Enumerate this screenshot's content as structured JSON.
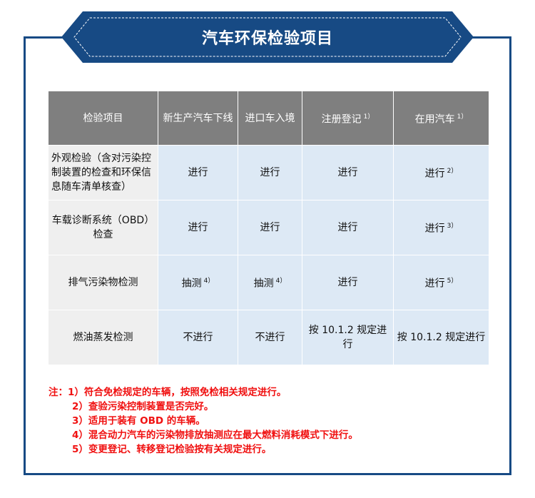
{
  "title": "汽车环保检验项目",
  "table": {
    "headers": [
      {
        "text": "检验项目",
        "sup": ""
      },
      {
        "text": "新生产汽车下线",
        "sup": ""
      },
      {
        "text": "进口车入境",
        "sup": ""
      },
      {
        "text": "注册登记",
        "sup": "1）"
      },
      {
        "text": "在用汽车",
        "sup": "1）"
      }
    ],
    "rows": [
      [
        {
          "text": "外观检验（含对污染控制装置的检查和环保信息随车清单核查）",
          "sup": ""
        },
        {
          "text": "进行",
          "sup": ""
        },
        {
          "text": "进行",
          "sup": ""
        },
        {
          "text": "进行",
          "sup": ""
        },
        {
          "text": "进行",
          "sup": "2）"
        }
      ],
      [
        {
          "text": "车载诊断系统（OBD）检查",
          "sup": ""
        },
        {
          "text": "进行",
          "sup": ""
        },
        {
          "text": "进行",
          "sup": ""
        },
        {
          "text": "进行",
          "sup": ""
        },
        {
          "text": "进行",
          "sup": "3）"
        }
      ],
      [
        {
          "text": "排气污染物检测",
          "sup": ""
        },
        {
          "text": "抽测",
          "sup": "4）"
        },
        {
          "text": "抽测",
          "sup": "4）"
        },
        {
          "text": "进行",
          "sup": ""
        },
        {
          "text": "进行",
          "sup": "5）"
        }
      ],
      [
        {
          "text": "燃油蒸发检测",
          "sup": ""
        },
        {
          "text": "不进行",
          "sup": ""
        },
        {
          "text": "不进行",
          "sup": ""
        },
        {
          "text": "按 10.1.2 规定进行",
          "sup": ""
        },
        {
          "text": "按 10.1.2 规定进行",
          "sup": ""
        }
      ]
    ]
  },
  "notes": [
    "注：1）符合免检规定的车辆，按照免检相关规定进行。",
    "2）查验污染控制装置是否完好。",
    "3）适用于装有 OBD 的车辆。",
    "4）混合动力汽车的污染物排放抽测应在最大燃料消耗模式下进行。",
    "5）变更登记、转移登记检验按有关规定进行。"
  ],
  "colors": {
    "frame": "#174a84",
    "header": "#7f7f7f",
    "cell": "#dde9f5",
    "note": "#f01010"
  }
}
